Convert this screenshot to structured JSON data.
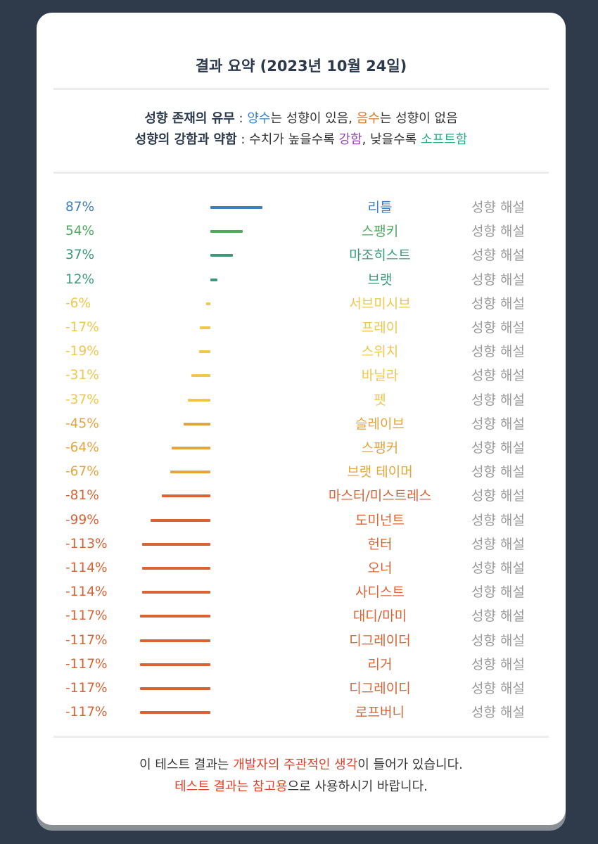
{
  "title": "결과 요약 (2023년 10월 24일)",
  "legend": {
    "line1": {
      "label": "성향 존재의 유무",
      "sep": " : ",
      "positive": "양수",
      "positive_rest": "는 성향이 있음, ",
      "negative": "음수",
      "negative_rest": "는 성향이 없음"
    },
    "line2": {
      "label": "성향의 강함과 약함",
      "sep": " : 수치가 높을수록 ",
      "strong": "강함",
      "mid": ", 낮을수록 ",
      "soft": "소프트함"
    }
  },
  "colors": {
    "blue": "#3d7fbf",
    "green": "#4ea860",
    "teal": "#3a9a7a",
    "yellow": "#efc74a",
    "amber": "#e3a53e",
    "red": "#d86436"
  },
  "explain_label": "성향 해설",
  "chart_data": {
    "type": "bar",
    "orientation": "horizontal",
    "unit": "%",
    "categories": [
      "리틀",
      "스팽키",
      "마조히스트",
      "브랫",
      "서브미시브",
      "프레이",
      "스위치",
      "바닐라",
      "펫",
      "슬레이브",
      "스팽커",
      "브랫 테이머",
      "마스터/미스트레스",
      "도미넌트",
      "헌터",
      "오너",
      "사디스트",
      "대디/마미",
      "디그레이더",
      "리거",
      "디그레이디",
      "로프버니"
    ],
    "values": [
      87,
      54,
      37,
      12,
      -6,
      -17,
      -19,
      -31,
      -37,
      -45,
      -64,
      -67,
      -81,
      -99,
      -113,
      -114,
      -114,
      -117,
      -117,
      -117,
      -117,
      -117
    ],
    "labels": [
      "87%",
      "54%",
      "37%",
      "12%",
      "-6%",
      "-17%",
      "-19%",
      "-31%",
      "-37%",
      "-45%",
      "-64%",
      "-67%",
      "-81%",
      "-99%",
      "-113%",
      "-114%",
      "-114%",
      "-117%",
      "-117%",
      "-117%",
      "-117%",
      "-117%"
    ],
    "colors": [
      "#3d7fbf",
      "#4ea860",
      "#3a9a7a",
      "#3a9a7a",
      "#efc74a",
      "#efc74a",
      "#efc74a",
      "#efc74a",
      "#efc74a",
      "#e3a53e",
      "#e3a53e",
      "#e3a53e",
      "#d86436",
      "#d86436",
      "#d86436",
      "#d86436",
      "#d86436",
      "#d86436",
      "#d86436",
      "#d86436",
      "#d86436",
      "#d86436"
    ]
  },
  "footer": {
    "line1_pre": "이 테스트 결과는 ",
    "line1_highlight": "개발자의 주관적인 생각",
    "line1_post": "이 들어가 있습니다.",
    "line2_highlight": "테스트 결과는 참고용",
    "line2_post": "으로 사용하시기 바랍니다."
  }
}
